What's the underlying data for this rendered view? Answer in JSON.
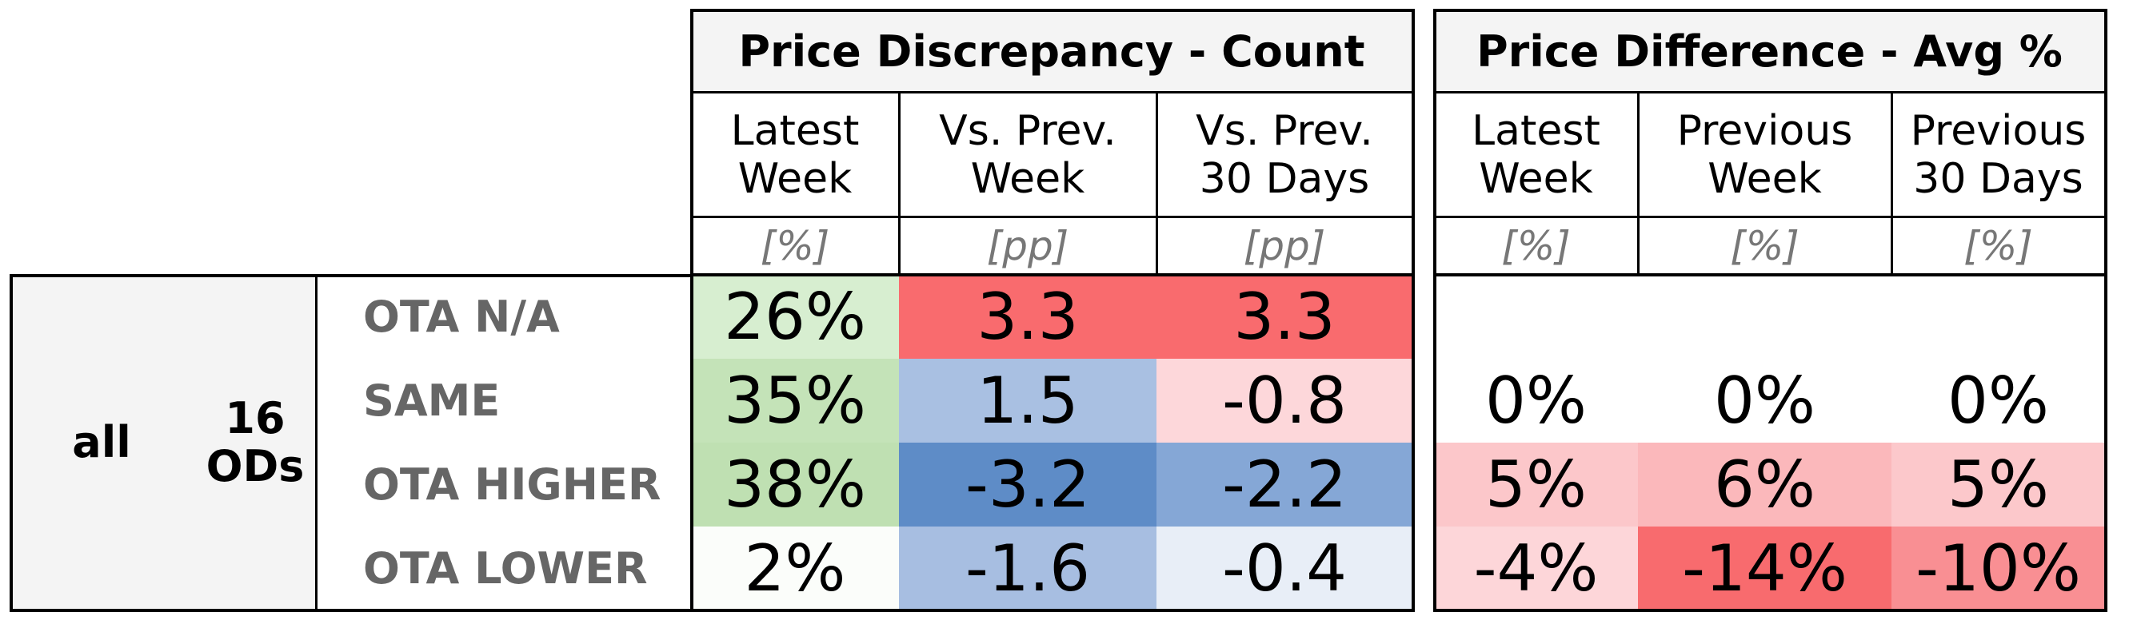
{
  "chart_data": {
    "type": "table",
    "group": {
      "segment": "all",
      "ods": "16\nODs"
    },
    "row_labels": [
      "OTA N/A",
      "SAME",
      "OTA HIGHER",
      "OTA LOWER"
    ],
    "sections": [
      {
        "title": "Price Discrepancy - Count",
        "columns": [
          {
            "header": "Latest\nWeek",
            "unit": "[%]",
            "cells": [
              {
                "text": "26%",
                "color": "#d7eed0"
              },
              {
                "text": "35%",
                "color": "#c4e3b8"
              },
              {
                "text": "38%",
                "color": "#bfe0b2"
              },
              {
                "text": "2%",
                "color": "#fbfdfa"
              }
            ]
          },
          {
            "header": "Vs. Prev.\nWeek",
            "unit": "[pp]",
            "cells": [
              {
                "text": "3.3",
                "color": "#f96b6e"
              },
              {
                "text": "1.5",
                "color": "#a9c0e2"
              },
              {
                "text": "-3.2",
                "color": "#5e8cc7"
              },
              {
                "text": "-1.6",
                "color": "#a7bee1"
              }
            ]
          },
          {
            "header": "Vs. Prev.\n30 Days",
            "unit": "[pp]",
            "cells": [
              {
                "text": "3.3",
                "color": "#f96b6e"
              },
              {
                "text": "-0.8",
                "color": "#fdd7da"
              },
              {
                "text": "-2.2",
                "color": "#85a7d6"
              },
              {
                "text": "-0.4",
                "color": "#e8eef7"
              }
            ]
          }
        ]
      },
      {
        "title": "Price Difference - Avg %",
        "columns": [
          {
            "header": "Latest\nWeek",
            "unit": "[%]",
            "cells": [
              {
                "text": "",
                "color": "#ffffff"
              },
              {
                "text": "0%",
                "color": "#ffffff"
              },
              {
                "text": "5%",
                "color": "#fcc7ca"
              },
              {
                "text": "-4%",
                "color": "#fdd6d9"
              }
            ]
          },
          {
            "header": "Previous\nWeek",
            "unit": "[%]",
            "cells": [
              {
                "text": "",
                "color": "#ffffff"
              },
              {
                "text": "0%",
                "color": "#ffffff"
              },
              {
                "text": "6%",
                "color": "#fbb8bb"
              },
              {
                "text": "-14%",
                "color": "#f86b6e"
              }
            ]
          },
          {
            "header": "Previous\n30 Days",
            "unit": "[%]",
            "cells": [
              {
                "text": "",
                "color": "#ffffff"
              },
              {
                "text": "0%",
                "color": "#ffffff"
              },
              {
                "text": "5%",
                "color": "#fcc8cb"
              },
              {
                "text": "-10%",
                "color": "#f98f93"
              }
            ]
          }
        ]
      }
    ]
  }
}
